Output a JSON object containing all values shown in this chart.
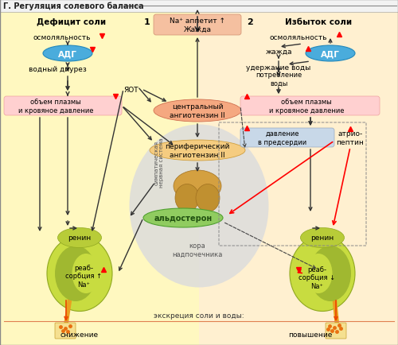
{
  "title": "Г. Регуляция солевого баланса",
  "bg_left": "#FFF8C4",
  "bg_right": "#FFF0D0",
  "bg_center_circle": "#DCDCDC",
  "title_bar": "#F0F0F0",
  "box_pink": "#FFCCCC",
  "box_salmon": "#F5B8A0",
  "box_orange": "#F5CC80",
  "box_blue_gray": "#C8D8E8",
  "adg_color": "#4AACDC",
  "aldosterone_fill": "#90CC70",
  "kidney_outer": "#CCDC50",
  "kidney_inner_dark": "#A0B830",
  "kidney_hilum": "#C8DC50",
  "adrenal_color": "#D4A040",
  "labels": {
    "title": "Г. Регуляция солевого баланса",
    "deficit": "Дефицит соли",
    "izbytok": "Избыток соли",
    "num1": "1",
    "num2": "2",
    "na_appetite": "Na⁺ аппетит ↑\nЖажда",
    "osmol": "осмоляльность",
    "adg": "АДГ",
    "water_diuresis": "водный диурез",
    "jot": "ЯОТ",
    "plasma_pressure": "объем плазмы\nи кровяное давление",
    "sympathetic": "симпатическая\nнервная система",
    "central_ang": "центральный\nангиотензин II",
    "peripheral_ang": "периферический\nангиотензин II",
    "aldosterone": "альдостерон",
    "adrenal_cortex": "кора\nнадпочечника",
    "renin": "ренин",
    "reab_up": "реаб-\nсорбция ↑\nNa⁺",
    "thirst": "жажда",
    "water_retention": "удержание воды",
    "water_consumption": "потребление\nводы",
    "atrium_pressure": "давление\nв предсердии",
    "atrio_peptin": "атрио-\nпептин",
    "reab_down": "реаб-\nсорбция ↓\nNa⁺",
    "excretion": "экскреция соли и воды:",
    "decrease": "снижение",
    "increase": "повышение"
  }
}
